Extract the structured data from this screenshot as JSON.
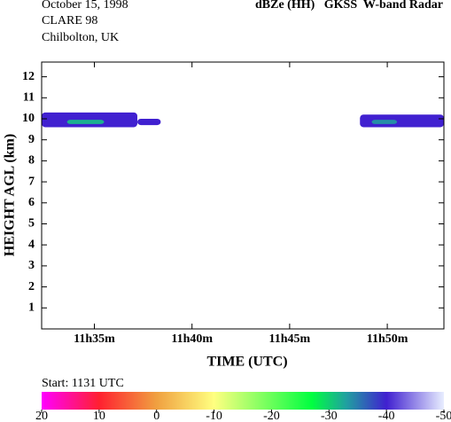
{
  "chart_data": {
    "type": "radar-echo",
    "info": [
      "October 15, 1998",
      "CLARE 98",
      "Chilbolton, UK"
    ],
    "title": "dBZe (HH)   GKSS  W-band Radar",
    "xlabel": "TIME (UTC)",
    "ylabel": "HEIGHT AGL (km)",
    "start": "Start: 1131 UTC",
    "xlim": [
      32.3,
      52.9
    ],
    "xticks": [
      {
        "value": 35,
        "label": "11h35m"
      },
      {
        "value": 40,
        "label": "11h40m"
      },
      {
        "value": 45,
        "label": "11h45m"
      },
      {
        "value": 50,
        "label": "11h50m"
      }
    ],
    "ylim": [
      0,
      12.7
    ],
    "yticks": [
      1,
      2,
      3,
      4,
      5,
      6,
      7,
      8,
      9,
      10,
      11,
      12
    ],
    "echoes": [
      {
        "x0": 32.3,
        "x1": 37.2,
        "y0": 9.6,
        "y1": 10.3,
        "value": -40
      },
      {
        "x0": 37.2,
        "x1": 38.4,
        "y0": 9.7,
        "y1": 10.0,
        "value": -40
      },
      {
        "x0": 33.6,
        "x1": 35.5,
        "y0": 9.75,
        "y1": 9.95,
        "value": -32
      },
      {
        "x0": 48.6,
        "x1": 52.9,
        "y0": 9.6,
        "y1": 10.2,
        "value": -40
      },
      {
        "x0": 49.2,
        "x1": 50.5,
        "y0": 9.75,
        "y1": 9.95,
        "value": -34
      }
    ],
    "colorbar": {
      "lim": [
        20,
        -50
      ],
      "ticks": [
        20,
        10,
        0,
        -10,
        -20,
        -30,
        -40,
        -50
      ],
      "stops": [
        {
          "value": 20,
          "color": "#ff00ff"
        },
        {
          "value": 10,
          "color": "#ff2030"
        },
        {
          "value": 0,
          "color": "#f0a040"
        },
        {
          "value": -10,
          "color": "#ffff80"
        },
        {
          "value": -27,
          "color": "#00ff40"
        },
        {
          "value": -33,
          "color": "#20a0a0"
        },
        {
          "value": -40,
          "color": "#4020d0"
        },
        {
          "value": -50,
          "color": "#e8eeff"
        }
      ]
    }
  }
}
